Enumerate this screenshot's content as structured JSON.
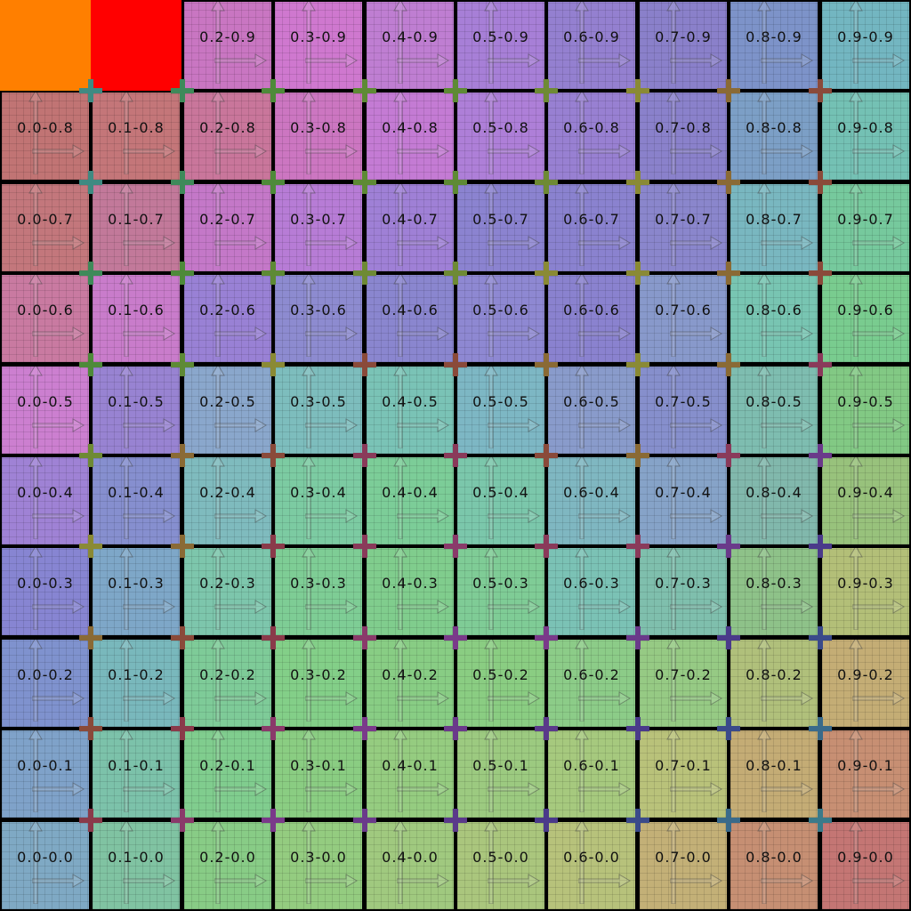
{
  "solid_tiles": [
    {
      "name": "orange-tile",
      "color": "#ff7f00"
    },
    {
      "name": "red-tile",
      "color": "#ff0000"
    }
  ],
  "rows": [
    [
      "",
      "",
      "0.2-0.9",
      "0.3-0.9",
      "0.4-0.9",
      "0.5-0.9",
      "0.6-0.9",
      "0.7-0.9",
      "0.8-0.9",
      "0.9-0.9"
    ],
    [
      "0.0-0.8",
      "0.1-0.8",
      "0.2-0.8",
      "0.3-0.8",
      "0.4-0.8",
      "0.5-0.8",
      "0.6-0.8",
      "0.7-0.8",
      "0.8-0.8",
      "0.9-0.8"
    ],
    [
      "0.0-0.7",
      "0.1-0.7",
      "0.2-0.7",
      "0.3-0.7",
      "0.4-0.7",
      "0.5-0.7",
      "0.6-0.7",
      "0.7-0.7",
      "0.8-0.7",
      "0.9-0.7"
    ],
    [
      "0.0-0.6",
      "0.1-0.6",
      "0.2-0.6",
      "0.3-0.6",
      "0.4-0.6",
      "0.5-0.6",
      "0.6-0.6",
      "0.7-0.6",
      "0.8-0.6",
      "0.9-0.6"
    ],
    [
      "0.0-0.5",
      "0.1-0.5",
      "0.2-0.5",
      "0.3-0.5",
      "0.4-0.5",
      "0.5-0.5",
      "0.6-0.5",
      "0.7-0.5",
      "0.8-0.5",
      "0.9-0.5"
    ],
    [
      "0.0-0.4",
      "0.1-0.4",
      "0.2-0.4",
      "0.3-0.4",
      "0.4-0.4",
      "0.5-0.4",
      "0.6-0.4",
      "0.7-0.4",
      "0.8-0.4",
      "0.9-0.4"
    ],
    [
      "0.0-0.3",
      "0.1-0.3",
      "0.2-0.3",
      "0.3-0.3",
      "0.4-0.3",
      "0.5-0.3",
      "0.6-0.3",
      "0.7-0.3",
      "0.8-0.3",
      "0.9-0.3"
    ],
    [
      "0.0-0.2",
      "0.1-0.2",
      "0.2-0.2",
      "0.3-0.2",
      "0.4-0.2",
      "0.5-0.2",
      "0.6-0.2",
      "0.7-0.2",
      "0.8-0.2",
      "0.9-0.2"
    ],
    [
      "0.0-0.1",
      "0.1-0.1",
      "0.2-0.1",
      "0.3-0.1",
      "0.4-0.1",
      "0.5-0.1",
      "0.6-0.1",
      "0.7-0.1",
      "0.8-0.1",
      "0.9-0.1"
    ],
    [
      "0.0-0.0",
      "0.1-0.0",
      "0.2-0.0",
      "0.3-0.0",
      "0.4-0.0",
      "0.5-0.0",
      "0.6-0.0",
      "0.7-0.0",
      "0.8-0.0",
      "0.9-0.0"
    ]
  ],
  "tile_colors": [
    [
      "",
      "",
      "#c976c2",
      "#cf78cf",
      "#bf7ed2",
      "#a77fd7",
      "#9480d0",
      "#8a80ca",
      "#7d93c9",
      "#73b6c1"
    ],
    [
      "#c17474",
      "#c47679",
      "#c9769b",
      "#cc76c1",
      "#c47bd4",
      "#ae7fd8",
      "#9880d2",
      "#8a81cb",
      "#7c9fc6",
      "#74c1b4"
    ],
    [
      "#c3777c",
      "#c2799a",
      "#c478c8",
      "#b77cd6",
      "#9f80d6",
      "#8b83d0",
      "#8a82cf",
      "#8a86cc",
      "#79b7c0",
      "#76c99d"
    ],
    [
      "#c97aa1",
      "#c97ccb",
      "#9981d5",
      "#8d8bd0",
      "#8a86cf",
      "#8e88d2",
      "#8a82cf",
      "#8899cb",
      "#78c5b2",
      "#79cc8f"
    ],
    [
      "#cc7fd0",
      "#9883d2",
      "#8aa7cc",
      "#7dbdbd",
      "#7ac3b6",
      "#7db7c4",
      "#899bcb",
      "#868fcc",
      "#7ebdb0",
      "#82c984"
    ],
    [
      "#9f82d5",
      "#868fcf",
      "#7fbbbe",
      "#7ccba2",
      "#7ccd98",
      "#7bc7ab",
      "#7fb7c1",
      "#86a3c8",
      "#81b8ac",
      "#98c27c"
    ],
    [
      "#8785d2",
      "#7ea7c8",
      "#7dc6ac",
      "#7ecd95",
      "#80cd8d",
      "#7fcc96",
      "#7bc2b5",
      "#7fbfad",
      "#8ec289",
      "#b3bf78"
    ],
    [
      "#7f92ce",
      "#79b8bc",
      "#7ecb98",
      "#83cf88",
      "#88cd84",
      "#8acd82",
      "#8ccc88",
      "#96ca84",
      "#b0c07b",
      "#c4ad75"
    ],
    [
      "#7fa2c9",
      "#7cc2aa",
      "#80cd8e",
      "#8acd82",
      "#95cc80",
      "#9cca80",
      "#a6c97e",
      "#b9c27a",
      "#c4ac75",
      "#c78f73"
    ],
    [
      "#7fa9c4",
      "#80c3a2",
      "#88cc86",
      "#94cc80",
      "#a0c97f",
      "#aac67d",
      "#b7c27b",
      "#c3b077",
      "#c68f73",
      "#c47674"
    ]
  ],
  "cross_colors": [
    [
      "#3f8a82",
      "#3f8a5a",
      "#4e8a3a",
      "#5e8a35",
      "#5e8a35",
      "#6e8a35",
      "#8a8a35",
      "#8a6a35",
      "#8a4a3a"
    ],
    [
      "#3f8a82",
      "#3f8a5a",
      "#4e8a3a",
      "#5e8a35",
      "#5e8a35",
      "#6e8a35",
      "#8a8a35",
      "#8a6a35",
      "#8a4a3a"
    ],
    [
      "#3f8a5a",
      "#4e8a3a",
      "#5e8a35",
      "#6e8a35",
      "#6e8a35",
      "#8a8a35",
      "#8a8a35",
      "#8a6a35",
      "#8a4a3a"
    ],
    [
      "#4e8a3a",
      "#5e8a35",
      "#8a8a35",
      "#8a4a3a",
      "#8a4a3a",
      "#8a6a35",
      "#8a8a35",
      "#8a6a35",
      "#8a3a5a"
    ],
    [
      "#6e8a35",
      "#8a6a35",
      "#8a4a3a",
      "#8a3a5a",
      "#8a3a5a",
      "#8a4a3a",
      "#8a6a35",
      "#8a3a5a",
      "#6a3a8a"
    ],
    [
      "#8a8a35",
      "#8a6a35",
      "#8a3a4a",
      "#8a3a5a",
      "#8a3a6a",
      "#8a3a5a",
      "#8a3a5a",
      "#6a3a8a",
      "#4a3a8a"
    ],
    [
      "#8a6a35",
      "#8a4a3a",
      "#8a3a4a",
      "#8a3a6a",
      "#7a3a8a",
      "#7a3a8a",
      "#6a3a8a",
      "#4a3a8a",
      "#3a4a8a"
    ],
    [
      "#8a4a3a",
      "#8a3a4a",
      "#8a3a6a",
      "#7a3a8a",
      "#6a3a8a",
      "#5a3a8a",
      "#4a3a8a",
      "#3a4a8a",
      "#3a6a8a"
    ],
    [
      "#8a3a4a",
      "#8a3a6a",
      "#7a3a8a",
      "#6a3a8a",
      "#5a3a8a",
      "#4a3a8a",
      "#3a4a8a",
      "#3a6a8a",
      "#3a7a8a"
    ]
  ]
}
